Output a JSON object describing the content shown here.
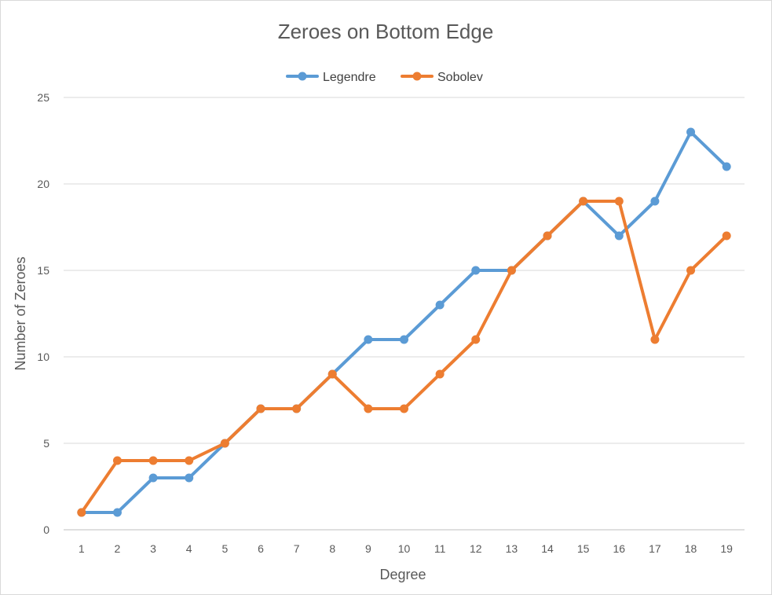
{
  "chart_data": {
    "type": "line",
    "title": "Zeroes on Bottom Edge",
    "xlabel": "Degree",
    "ylabel": "Number of Zeroes",
    "categories": [
      "1",
      "2",
      "3",
      "4",
      "5",
      "6",
      "7",
      "8",
      "9",
      "10",
      "11",
      "12",
      "13",
      "14",
      "15",
      "16",
      "17",
      "18",
      "19"
    ],
    "ylim": [
      0,
      25
    ],
    "yticks": [
      "0",
      "5",
      "10",
      "15",
      "20",
      "25"
    ],
    "grid": true,
    "legend_position": "top",
    "series": [
      {
        "name": "Legendre",
        "color": "#5b9bd5",
        "values": [
          1,
          1,
          3,
          3,
          5,
          7,
          7,
          9,
          11,
          11,
          13,
          15,
          15,
          17,
          19,
          17,
          19,
          23,
          21
        ]
      },
      {
        "name": "Sobolev",
        "color": "#ed7d31",
        "values": [
          1,
          4,
          4,
          4,
          5,
          7,
          7,
          9,
          7,
          7,
          9,
          11,
          15,
          17,
          19,
          19,
          11,
          15,
          17
        ]
      }
    ]
  }
}
